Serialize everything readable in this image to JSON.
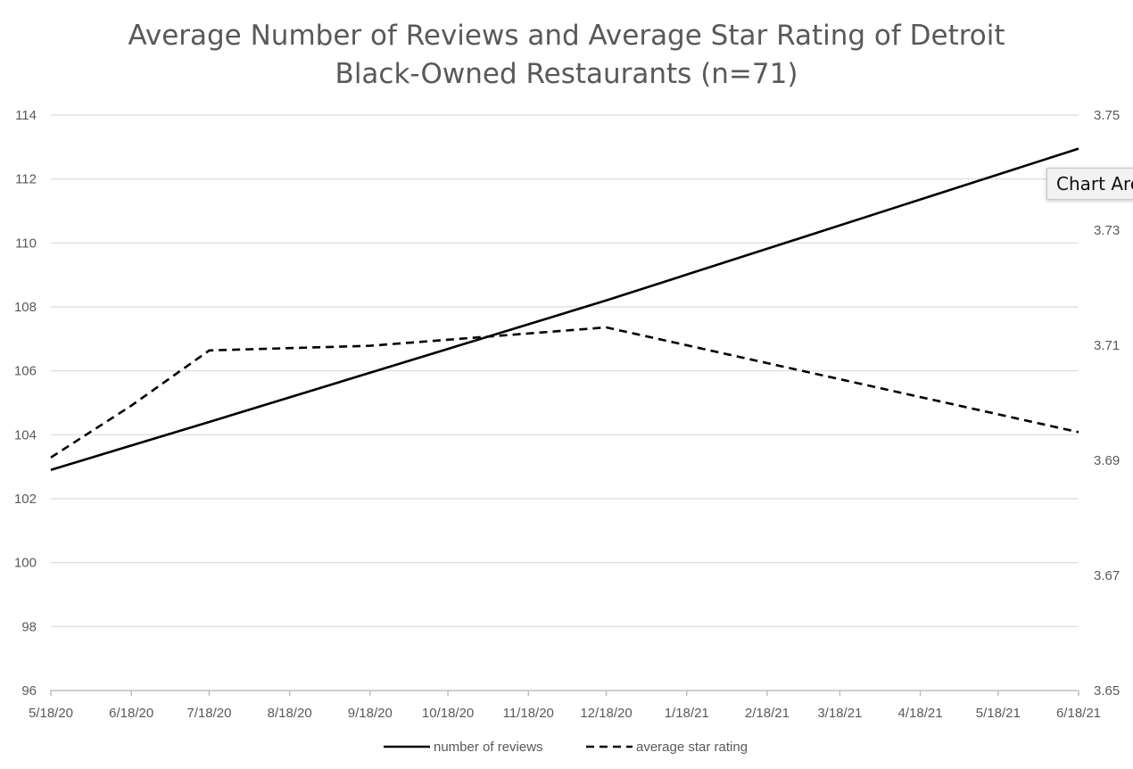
{
  "tooltip": "Chart Area",
  "chart_data": {
    "type": "line",
    "title": [
      "Average Number of Reviews and Average Star Rating of Detroit",
      "Black-Owned Restaurants (n=71)"
    ],
    "x": [
      "5/18/20",
      "6/18/20",
      "7/18/20",
      "8/18/20",
      "9/18/20",
      "10/18/20",
      "11/18/20",
      "12/18/20",
      "1/18/21",
      "2/18/21",
      "3/18/21",
      "4/18/21",
      "5/18/21",
      "6/18/21"
    ],
    "y_left_ticks": [
      "96",
      "98",
      "100",
      "102",
      "104",
      "106",
      "108",
      "110",
      "112",
      "114"
    ],
    "y_left_range": [
      96,
      114
    ],
    "y_right_ticks": [
      "3.65",
      "3.67",
      "3.69",
      "3.71",
      "3.73",
      "3.75"
    ],
    "y_right_range": [
      3.65,
      3.75
    ],
    "grid": true,
    "legend_position": "bottom",
    "series": [
      {
        "name": "number of reviews",
        "axis": "left",
        "style": "solid",
        "color": "#000000",
        "points": [
          [
            "5/18/20",
            102.9
          ],
          [
            "7/18/20",
            104.4
          ],
          [
            "12/18/20",
            108.2
          ],
          [
            "6/18/21",
            112.95
          ]
        ]
      },
      {
        "name": "average star rating",
        "axis": "right",
        "style": "dashed",
        "color": "#000000",
        "points": [
          [
            "5/18/20",
            3.6905
          ],
          [
            "6/18/20",
            3.6995
          ],
          [
            "7/18/20",
            3.7091
          ],
          [
            "9/18/20",
            3.7099
          ],
          [
            "12/18/20",
            3.7131
          ],
          [
            "6/18/21",
            3.6949
          ]
        ]
      }
    ]
  }
}
